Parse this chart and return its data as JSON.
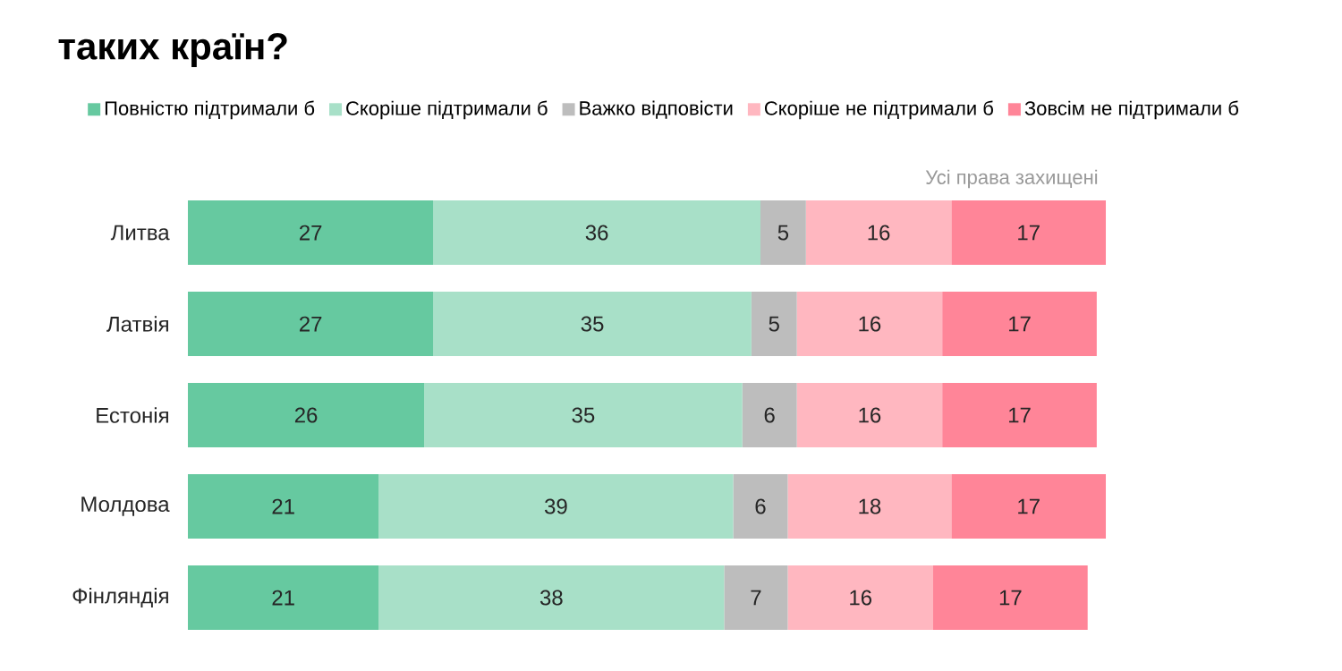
{
  "chart_data": {
    "type": "bar",
    "orientation": "horizontal",
    "stacked": true,
    "data_labels": true,
    "legend": "top",
    "title": "таких країн?",
    "annotations": [
      "Усі права захищені"
    ],
    "categories": [
      "Литва",
      "Латвія",
      "Естонія",
      "Молдова",
      "Фінляндія"
    ],
    "series": [
      {
        "name": "Повністю підтримали б",
        "color": "#66c9a0",
        "values": [
          27,
          27,
          26,
          21,
          21
        ]
      },
      {
        "name": "Скоріше підтримали б",
        "color": "#a8e0c8",
        "values": [
          36,
          35,
          35,
          39,
          38
        ]
      },
      {
        "name": "Важко відповісти",
        "color": "#bdbdbd",
        "values": [
          5,
          5,
          6,
          6,
          7
        ]
      },
      {
        "name": "Скоріше не підтримали б",
        "color": "#ffb7c0",
        "values": [
          16,
          16,
          16,
          18,
          16
        ]
      },
      {
        "name": "Зовсім не підтримали б",
        "color": "#ff8598",
        "values": [
          17,
          17,
          17,
          17,
          17
        ]
      }
    ]
  }
}
